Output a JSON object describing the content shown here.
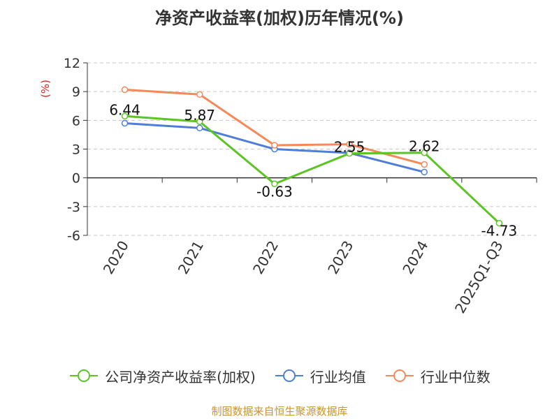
{
  "title": "净资产收益率(加权)历年情况(%)",
  "source": "制图数据来自恒生聚源数据库",
  "chart_data": {
    "type": "line",
    "title": "净资产收益率(加权)历年情况(%)",
    "xlabel": "",
    "ylabel": "(%)",
    "ylim": [
      -6,
      12
    ],
    "yticks": [
      12,
      9,
      6,
      3,
      0,
      -3,
      -6
    ],
    "ytick_labels": [
      "12",
      "9",
      "6",
      "3",
      "0",
      "-3",
      "-6"
    ],
    "grid": true,
    "legend_position": "bottom",
    "categories": [
      "2020",
      "2021",
      "2022",
      "2023",
      "2024",
      "2025Q1-Q3"
    ],
    "series": [
      {
        "name": "公司净资产收益率(加权)",
        "color": "#5cc424",
        "values": [
          6.44,
          5.87,
          -0.63,
          2.55,
          2.62,
          -4.73
        ],
        "labels": [
          "6.44",
          "5.87",
          "-0.63",
          "2.55",
          "2.62",
          "-4.73"
        ]
      },
      {
        "name": "行业均值",
        "color": "#4f7ed8",
        "values": [
          5.7,
          5.2,
          3.0,
          2.6,
          0.6,
          null
        ]
      },
      {
        "name": "行业中位数",
        "color": "#f5895a",
        "values": [
          9.2,
          8.7,
          3.4,
          3.5,
          1.4,
          null
        ]
      }
    ]
  }
}
